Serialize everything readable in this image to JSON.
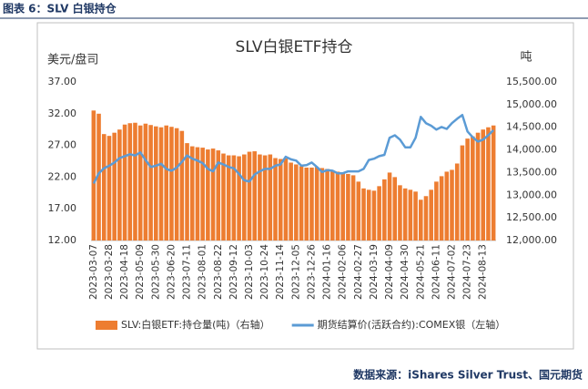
{
  "header": "图表 6：SLV 白银持仓",
  "source": "数据来源：iShares Silver Trust、国元期货",
  "chart_data": {
    "type": "combo",
    "title": "SLV白银ETF持仓",
    "ylabel": "美元/盘司",
    "y2label": "吨",
    "categories": [
      "2023-03-07",
      null,
      null,
      "2023-03-28",
      null,
      null,
      "2023-04-18",
      null,
      null,
      "2023-05-09",
      null,
      null,
      "2023-05-30",
      null,
      null,
      "2023-06-20",
      null,
      null,
      "2023-07-11",
      null,
      null,
      "2023-08-01",
      null,
      null,
      "2023-08-22",
      null,
      null,
      "2023-09-12",
      null,
      null,
      "2023-10-03",
      null,
      null,
      "2023-10-24",
      null,
      null,
      "2023-11-14",
      null,
      null,
      "2023-12-05",
      null,
      null,
      "2023-12-26",
      null,
      null,
      "2024-01-16",
      null,
      null,
      "2024-02-06",
      null,
      null,
      "2024-02-27",
      null,
      null,
      "2024-03-19",
      null,
      null,
      "2024-04-09",
      null,
      null,
      "2024-04-30",
      null,
      null,
      "2024-05-21",
      null,
      null,
      "2024-06-11",
      null,
      null,
      "2024-07-02",
      null,
      null,
      "2024-07-23",
      null,
      null,
      "2024-08-13",
      null,
      null
    ],
    "series": [
      {
        "name": "SLV:白银ETF:持仓量(吨)（右轴）",
        "type": "bar",
        "axis": "y2",
        "color": "#ed7d31",
        "values": [
          14870,
          14800,
          14350,
          14310,
          14380,
          14450,
          14560,
          14590,
          14600,
          14540,
          14580,
          14550,
          14520,
          14500,
          14540,
          14510,
          14480,
          14420,
          14150,
          14080,
          14060,
          14050,
          14010,
          14030,
          13990,
          13920,
          13880,
          13880,
          13860,
          13900,
          13960,
          13970,
          13900,
          13880,
          13900,
          13820,
          13800,
          13810,
          13720,
          13680,
          13640,
          13610,
          13610,
          13620,
          13600,
          13580,
          13540,
          13520,
          13500,
          13470,
          13440,
          13300,
          13150,
          13120,
          13100,
          13200,
          13350,
          13500,
          13400,
          13220,
          13150,
          13120,
          13080,
          12900,
          12980,
          13120,
          13300,
          13420,
          13520,
          13560,
          13700,
          14100,
          14250,
          14300,
          14380,
          14450,
          14500,
          14540
        ]
      },
      {
        "name": "期货结算价(活跃合约):COMEX银（左轴）",
        "type": "line",
        "axis": "y",
        "color": "#5b9bd5",
        "values": [
          21.0,
          22.6,
          23.4,
          23.8,
          24.3,
          25.0,
          25.3,
          25.6,
          25.4,
          25.9,
          24.7,
          23.6,
          23.8,
          24.1,
          23.3,
          23.0,
          23.5,
          24.4,
          25.4,
          24.9,
          24.6,
          24.2,
          23.3,
          22.9,
          24.3,
          24.0,
          23.6,
          23.4,
          22.5,
          21.5,
          21.3,
          22.4,
          22.9,
          23.3,
          23.3,
          23.8,
          24.0,
          25.2,
          24.8,
          24.6,
          23.8,
          23.9,
          24.3,
          23.6,
          22.8,
          23.1,
          23.0,
          22.6,
          22.6,
          22.9,
          22.9,
          22.9,
          23.3,
          24.7,
          24.9,
          25.3,
          25.5,
          28.2,
          28.6,
          27.9,
          26.7,
          26.7,
          28.2,
          31.5,
          30.5,
          30.1,
          29.5,
          29.9,
          29.6,
          30.5,
          31.2,
          31.8,
          29.2,
          28.3,
          27.6,
          27.9,
          28.6,
          29.4
        ]
      }
    ],
    "ylim": [
      12,
      37
    ],
    "yticks": [
      {
        "value": 12,
        "label": "12.00"
      },
      {
        "value": 17,
        "label": "17.00"
      },
      {
        "value": 22,
        "label": "22.00"
      },
      {
        "value": 27,
        "label": "27.00"
      },
      {
        "value": 32,
        "label": "32.00"
      },
      {
        "value": 37,
        "label": "37.00"
      }
    ],
    "y2lim": [
      12000,
      15500
    ],
    "y2ticks": [
      {
        "value": 12000,
        "label": "12,000.00"
      },
      {
        "value": 12500,
        "label": "12,500.00"
      },
      {
        "value": 13000,
        "label": "13,000.00"
      },
      {
        "value": 13500,
        "label": "13,500.00"
      },
      {
        "value": 14000,
        "label": "14,000.00"
      },
      {
        "value": 14500,
        "label": "14,500.00"
      },
      {
        "value": 15000,
        "label": "15,000.00"
      },
      {
        "value": 15500,
        "label": "15,500.00"
      }
    ],
    "legend": "bottom"
  }
}
